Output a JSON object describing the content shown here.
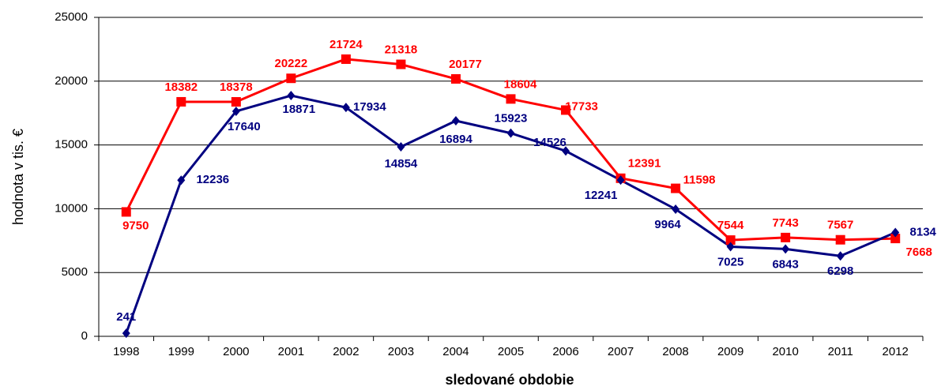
{
  "chart_data": {
    "type": "line",
    "y_label": "hodnota v tis. €",
    "x_label": "sledované obdobie",
    "categories": [
      "1998",
      "1999",
      "2000",
      "2001",
      "2002",
      "2003",
      "2004",
      "2005",
      "2006",
      "2007",
      "2008",
      "2009",
      "2010",
      "2011",
      "2012"
    ],
    "series": [
      {
        "color": "#ff0000",
        "marker": "square",
        "values": [
          9750,
          18382,
          18378,
          20222,
          21724,
          21318,
          20177,
          18604,
          17733,
          12391,
          11598,
          7544,
          7743,
          7567,
          7668
        ]
      },
      {
        "color": "#000080",
        "marker": "diamond",
        "values": [
          241,
          12236,
          17640,
          18871,
          17934,
          14854,
          16894,
          15923,
          14526,
          12241,
          9964,
          7025,
          6843,
          6298,
          8134
        ]
      }
    ],
    "ylim": [
      0,
      25000
    ],
    "yticks": [
      0,
      5000,
      10000,
      15000,
      20000,
      25000
    ],
    "grid": true
  }
}
